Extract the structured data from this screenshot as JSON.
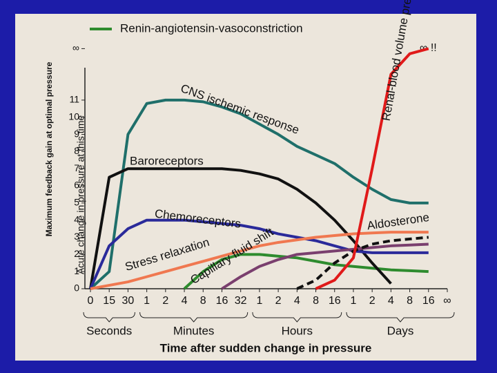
{
  "chart_data": {
    "type": "line",
    "legend": "top",
    "xlabel": "Time after sudden change in pressure",
    "ylabel": "Maximum feedback gain at optimal pressure",
    "ylabel2": "Acute change in pressure at this time",
    "infinity_annotation": "∞ !!",
    "categories": [
      "0",
      "15",
      "30",
      "1",
      "2",
      "4",
      "8",
      "16",
      "32",
      "1",
      "2",
      "4",
      "8",
      "16",
      "1",
      "2",
      "4",
      "8",
      "16",
      "∞"
    ],
    "x_groups": [
      "Seconds",
      "Minutes",
      "Hours",
      "Days"
    ],
    "ylim": [
      0,
      14.5
    ],
    "yticks": [
      0,
      1,
      2,
      3,
      4,
      5,
      6,
      7,
      8,
      9,
      10,
      11,
      {
        "value": 14,
        "label": "∞"
      }
    ],
    "series": [
      {
        "name": "Renin-angiotensin-vasoconstriction",
        "color": "#2e8b2e",
        "values": [
          null,
          null,
          null,
          null,
          null,
          0,
          1,
          1.7,
          2,
          2,
          1.9,
          1.8,
          1.6,
          1.4,
          1.3,
          1.2,
          1.1,
          1.05,
          1,
          null
        ]
      },
      {
        "name": "CNS ischemic response",
        "color": "#1f6f6a",
        "values": [
          0,
          1,
          9,
          10.8,
          11,
          11,
          10.9,
          10.6,
          10.2,
          9.6,
          9,
          8.3,
          7.8,
          7.3,
          6.5,
          5.8,
          5.2,
          5,
          5,
          null
        ]
      },
      {
        "name": "Baroreceptors",
        "color": "#111111",
        "values": [
          0,
          6.5,
          7,
          7,
          7,
          7,
          7,
          7,
          6.9,
          6.7,
          6.4,
          5.8,
          5,
          4,
          2.8,
          1.5,
          0.3,
          null,
          null,
          null
        ]
      },
      {
        "name": "Chemoreceptors",
        "color": "#2a2a9a",
        "values": [
          0,
          2.5,
          3.5,
          4,
          4,
          4,
          3.9,
          3.8,
          3.7,
          3.5,
          3.2,
          3,
          2.8,
          2.5,
          2.2,
          2.1,
          2.1,
          2.1,
          2.1,
          null
        ]
      },
      {
        "name": "Stress relaxation",
        "color": "#f07850",
        "values": [
          0,
          0.2,
          0.4,
          0.7,
          1,
          1.3,
          1.6,
          1.9,
          2.2,
          2.5,
          2.7,
          2.85,
          3,
          3.1,
          3.2,
          3.25,
          3.3,
          3.3,
          3.3,
          null
        ]
      },
      {
        "name": "Capillary fluid shift",
        "color": "#7a3f6e",
        "values": [
          null,
          null,
          null,
          null,
          null,
          null,
          null,
          0,
          0.7,
          1.3,
          1.7,
          2,
          2.1,
          2.2,
          2.3,
          2.4,
          2.5,
          2.55,
          2.6,
          null
        ]
      },
      {
        "name": "Aldosterone",
        "color": "#111111",
        "dashed": true,
        "values": [
          null,
          null,
          null,
          null,
          null,
          null,
          null,
          null,
          null,
          null,
          null,
          0,
          0.5,
          1.5,
          2.2,
          2.6,
          2.8,
          2.9,
          3,
          null
        ]
      },
      {
        "name": "Renal-blood volume pressure control",
        "color": "#e01a1a",
        "values": [
          null,
          null,
          null,
          null,
          null,
          null,
          null,
          null,
          null,
          null,
          null,
          null,
          0,
          0.5,
          1.8,
          7,
          12.5,
          13.7,
          14,
          null
        ]
      }
    ]
  }
}
